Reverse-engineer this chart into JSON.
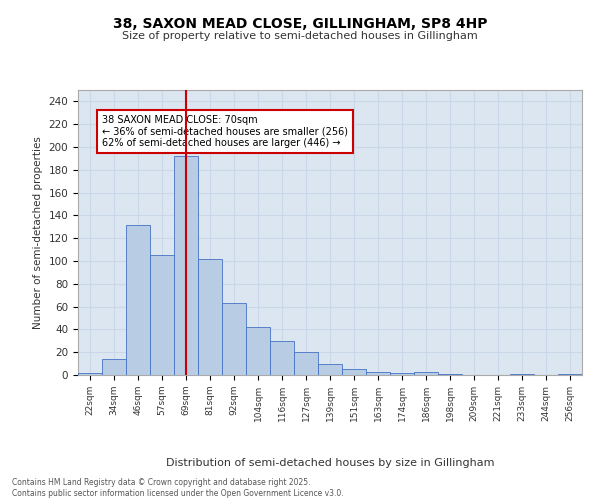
{
  "title1": "38, SAXON MEAD CLOSE, GILLINGHAM, SP8 4HP",
  "title2": "Size of property relative to semi-detached houses in Gillingham",
  "xlabel": "Distribution of semi-detached houses by size in Gillingham",
  "ylabel": "Number of semi-detached properties",
  "categories": [
    "22sqm",
    "34sqm",
    "46sqm",
    "57sqm",
    "69sqm",
    "81sqm",
    "92sqm",
    "104sqm",
    "116sqm",
    "127sqm",
    "139sqm",
    "151sqm",
    "163sqm",
    "174sqm",
    "186sqm",
    "198sqm",
    "209sqm",
    "221sqm",
    "233sqm",
    "244sqm",
    "256sqm"
  ],
  "values": [
    2,
    14,
    132,
    105,
    192,
    102,
    63,
    42,
    30,
    20,
    10,
    5,
    3,
    2,
    3,
    1,
    0,
    0,
    1,
    0,
    1
  ],
  "bar_color": "#b8cce4",
  "bar_edge_color": "#4472c4",
  "vline_x": 4,
  "vline_color": "#cc0000",
  "annotation_text": "38 SAXON MEAD CLOSE: 70sqm\n← 36% of semi-detached houses are smaller (256)\n62% of semi-detached houses are larger (446) →",
  "ylim": [
    0,
    250
  ],
  "yticks": [
    0,
    20,
    40,
    60,
    80,
    100,
    120,
    140,
    160,
    180,
    200,
    220,
    240
  ],
  "grid_color": "#c8d8e8",
  "bg_color": "#dce6f1",
  "footer1": "Contains HM Land Registry data © Crown copyright and database right 2025.",
  "footer2": "Contains public sector information licensed under the Open Government Licence v3.0."
}
